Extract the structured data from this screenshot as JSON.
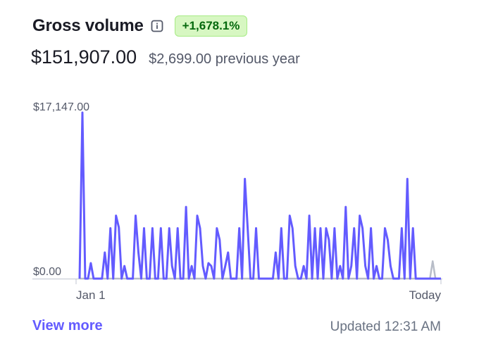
{
  "header": {
    "title": "Gross volume",
    "change_badge": "+1,678.1%"
  },
  "amounts": {
    "current": "$151,907.00",
    "previous": "$2,699.00 previous year"
  },
  "chart_data": {
    "type": "line",
    "y_max_label": "$17,147.00",
    "y_min_label": "$0.00",
    "x_start_label": "Jan 1",
    "x_end_label": "Today",
    "ylim": [
      0,
      17147
    ],
    "series": [
      {
        "color": "#635bff",
        "values": [
          0,
          17147,
          0,
          0,
          1600,
          0,
          0,
          0,
          0,
          2700,
          0,
          5200,
          0,
          6500,
          5300,
          0,
          1300,
          0,
          0,
          0,
          6500,
          2700,
          0,
          5200,
          0,
          0,
          5200,
          0,
          0,
          5200,
          0,
          0,
          5200,
          1300,
          0,
          5200,
          0,
          0,
          7400,
          0,
          1300,
          0,
          6500,
          5200,
          1300,
          0,
          1600,
          1300,
          0,
          5200,
          4000,
          0,
          1300,
          2700,
          0,
          0,
          0,
          5200,
          0,
          10300,
          5200,
          0,
          0,
          5200,
          0,
          0,
          0,
          0,
          0,
          0,
          2700,
          0,
          5200,
          0,
          0,
          6500,
          5200,
          1300,
          0,
          0,
          1300,
          0,
          6500,
          0,
          5200,
          0,
          5200,
          0,
          5200,
          4000,
          0,
          5200,
          0,
          1300,
          0,
          7400,
          0,
          1300,
          5200,
          0,
          6500,
          5200,
          1300,
          0,
          5200,
          0,
          1300,
          0,
          0,
          5200,
          4000,
          1300,
          0,
          0,
          0,
          5200,
          0,
          10300,
          0,
          5200,
          0,
          0,
          0,
          0,
          0,
          0,
          0,
          0,
          0,
          0
        ],
        "spacing": "mixed"
      },
      {
        "color": "#b8bdc8",
        "values": [
          0,
          0,
          0,
          0,
          0,
          0,
          0,
          0,
          0,
          0,
          0,
          0,
          0,
          0,
          0,
          0,
          0,
          0,
          0,
          0,
          0,
          0,
          0,
          0,
          0,
          0,
          0,
          0,
          0,
          0,
          0,
          0,
          0,
          0,
          0,
          0,
          0,
          0,
          0,
          0,
          0,
          0,
          0,
          0,
          0,
          0,
          0,
          0,
          0,
          0,
          0,
          0,
          0,
          0,
          0,
          0,
          0,
          0,
          0,
          0,
          0,
          0,
          0,
          0,
          0,
          0,
          0,
          0,
          0,
          0,
          0,
          0,
          0,
          0,
          0,
          0,
          0,
          0,
          0,
          0,
          0,
          0,
          0,
          0,
          0,
          0,
          0,
          0,
          0,
          0,
          0,
          0,
          0,
          0,
          0,
          0,
          0,
          0,
          0,
          0,
          0,
          0,
          0,
          0,
          0,
          0,
          0,
          0,
          0,
          0,
          0,
          0,
          0,
          0,
          0,
          0,
          0,
          0,
          0,
          0,
          0,
          0,
          0,
          0,
          0,
          0,
          0,
          0,
          1800,
          0,
          0,
          0
        ]
      }
    ]
  },
  "footer": {
    "view_more": "View more",
    "updated": "Updated 12:31 AM"
  },
  "colors": {
    "accent": "#635bff",
    "badge_bg": "#d7f7c2",
    "badge_text": "#05690d"
  },
  "icons": {
    "info": "info-icon"
  }
}
